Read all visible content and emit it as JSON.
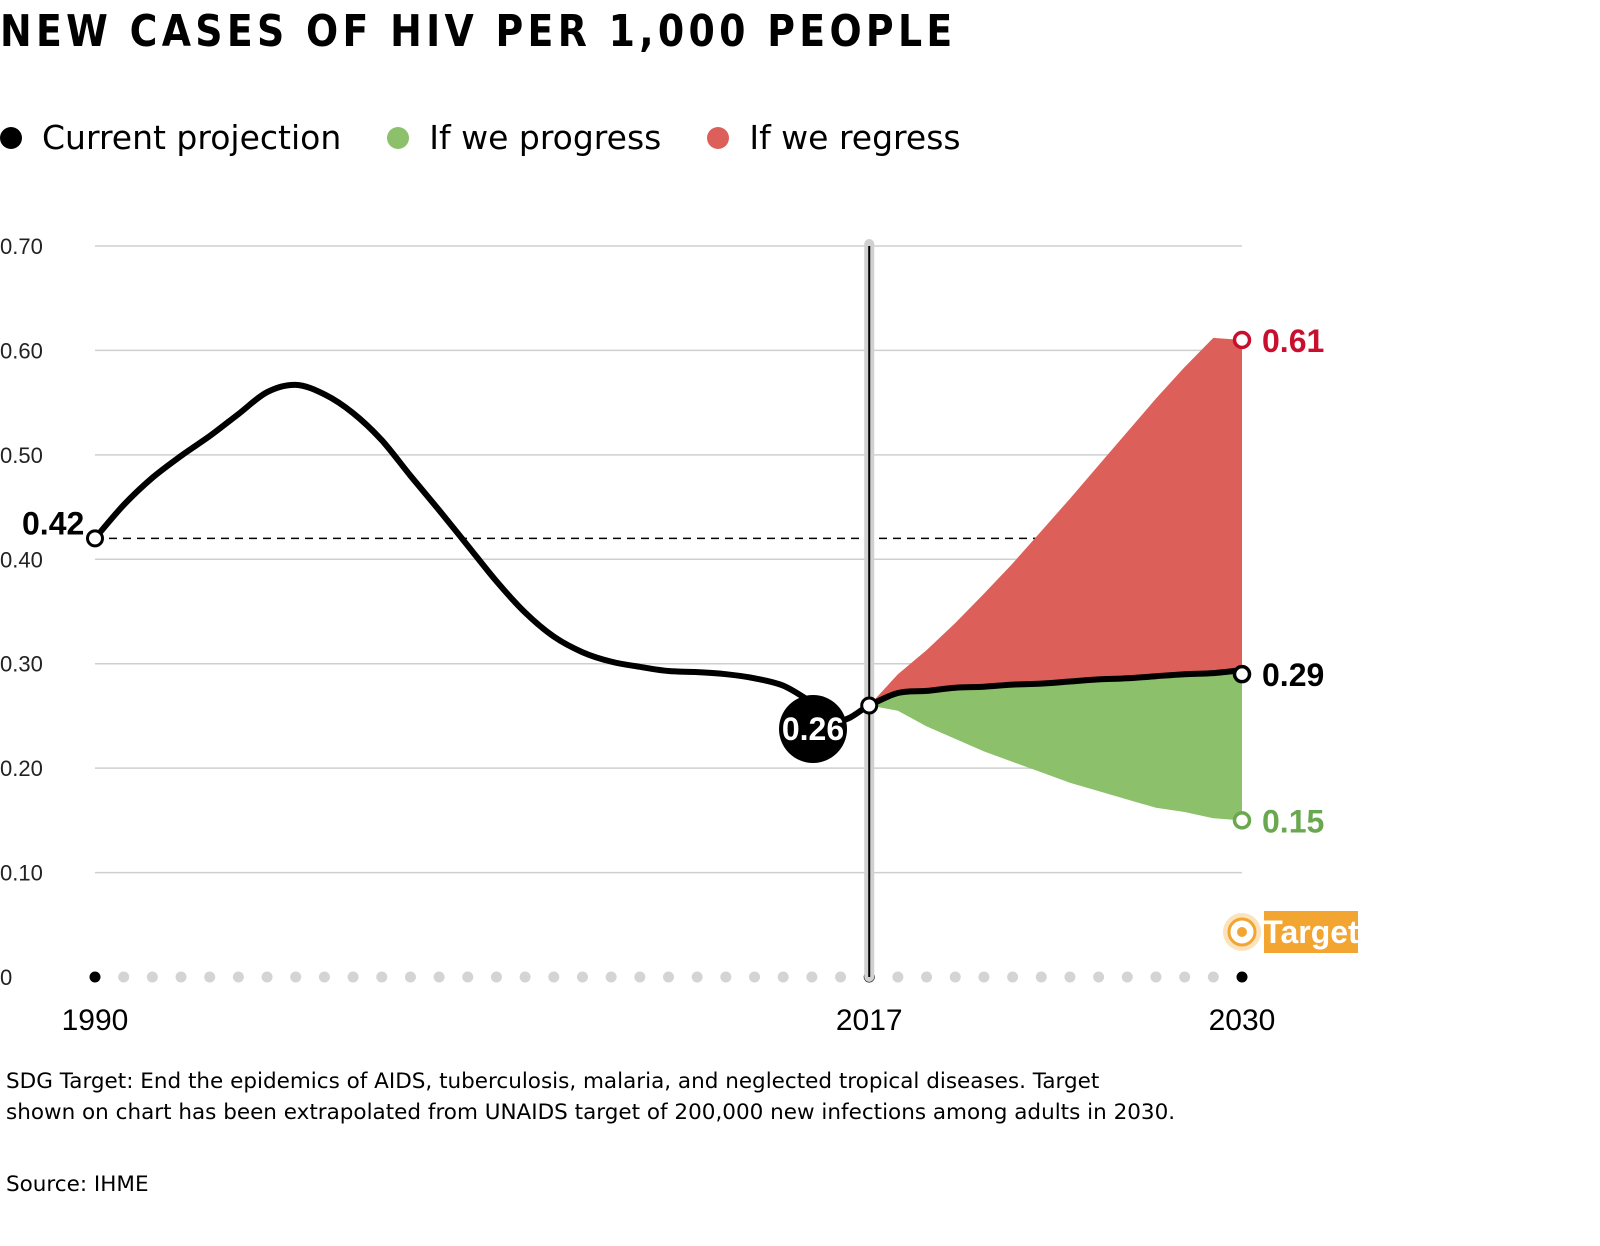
{
  "title": "NEW CASES OF HIV PER 1,000 PEOPLE",
  "legend": [
    {
      "label": "Current projection",
      "color": "#000000"
    },
    {
      "label": "If we progress",
      "color": "#8cc06a"
    },
    {
      "label": "If we regress",
      "color": "#dc6059"
    }
  ],
  "footnote": {
    "line1": "SDG Target: End the epidemics of AIDS, tuberculosis, malaria, and neglected tropical diseases. Target",
    "line2": "shown on chart has been extrapolated from UNAIDS target of 200,000 new infections among adults in 2030."
  },
  "source": "Source: IHME",
  "chart_data": {
    "type": "line",
    "title": "NEW CASES OF HIV PER 1,000 PEOPLE",
    "xlabel": "",
    "ylabel": "",
    "x_tick_labels": [
      "1990",
      "2017",
      "2030"
    ],
    "y_tick_labels": [
      "0",
      "0.10",
      "0.20",
      "0.30",
      "0.40",
      "0.50",
      "0.60",
      "0.70"
    ],
    "xlim": [
      1990,
      2030
    ],
    "ylim": [
      0,
      0.7
    ],
    "grid": true,
    "legend_position": "top-left",
    "reference_line": {
      "value": 0.42,
      "label": "0.42",
      "style": "dashed"
    },
    "divider_year": 2017,
    "series": [
      {
        "name": "Current projection",
        "color": "#000000",
        "x": [
          1990,
          1991,
          1992,
          1993,
          1994,
          1995,
          1996,
          1997,
          1998,
          1999,
          2000,
          2001,
          2002,
          2003,
          2004,
          2005,
          2006,
          2007,
          2008,
          2009,
          2010,
          2011,
          2012,
          2013,
          2014,
          2015,
          2016,
          2017,
          2018,
          2019,
          2020,
          2021,
          2022,
          2023,
          2024,
          2025,
          2026,
          2027,
          2028,
          2029,
          2030
        ],
        "y": [
          0.42,
          0.452,
          0.478,
          0.499,
          0.518,
          0.539,
          0.56,
          0.567,
          0.558,
          0.54,
          0.514,
          0.48,
          0.447,
          0.413,
          0.379,
          0.349,
          0.326,
          0.311,
          0.302,
          0.297,
          0.293,
          0.292,
          0.29,
          0.286,
          0.279,
          0.263,
          0.246,
          0.26,
          0.272,
          0.274,
          0.277,
          0.278,
          0.28,
          0.281,
          0.283,
          0.285,
          0.286,
          0.288,
          0.29,
          0.291,
          0.294
        ]
      },
      {
        "name": "If we progress",
        "color": "#8cc06a",
        "x": [
          2017,
          2018,
          2019,
          2020,
          2021,
          2022,
          2023,
          2024,
          2025,
          2026,
          2027,
          2028,
          2029,
          2030
        ],
        "y": [
          0.26,
          0.255,
          0.24,
          0.228,
          0.216,
          0.206,
          0.196,
          0.186,
          0.178,
          0.17,
          0.162,
          0.158,
          0.152,
          0.15
        ]
      },
      {
        "name": "If we regress",
        "color": "#dc6059",
        "x": [
          2017,
          2018,
          2019,
          2020,
          2021,
          2022,
          2023,
          2024,
          2025,
          2026,
          2027,
          2028,
          2029,
          2030
        ],
        "y": [
          0.26,
          0.29,
          0.313,
          0.339,
          0.367,
          0.396,
          0.427,
          0.458,
          0.49,
          0.522,
          0.554,
          0.584,
          0.612,
          0.61
        ]
      }
    ],
    "point_labels": [
      {
        "x": 1990,
        "y": 0.42,
        "label": "0.42"
      },
      {
        "x": 2017,
        "y": 0.26,
        "label": "0.26"
      },
      {
        "x": 2030,
        "y": 0.61,
        "label": "0.61",
        "color": "#c8102e"
      },
      {
        "x": 2030,
        "y": 0.29,
        "label": "0.29",
        "color": "#000000"
      },
      {
        "x": 2030,
        "y": 0.15,
        "label": "0.15",
        "color": "#6aa84f"
      }
    ],
    "target": {
      "label": "Target",
      "value": 0.04,
      "year": 2030,
      "color": "#f2a531"
    }
  }
}
